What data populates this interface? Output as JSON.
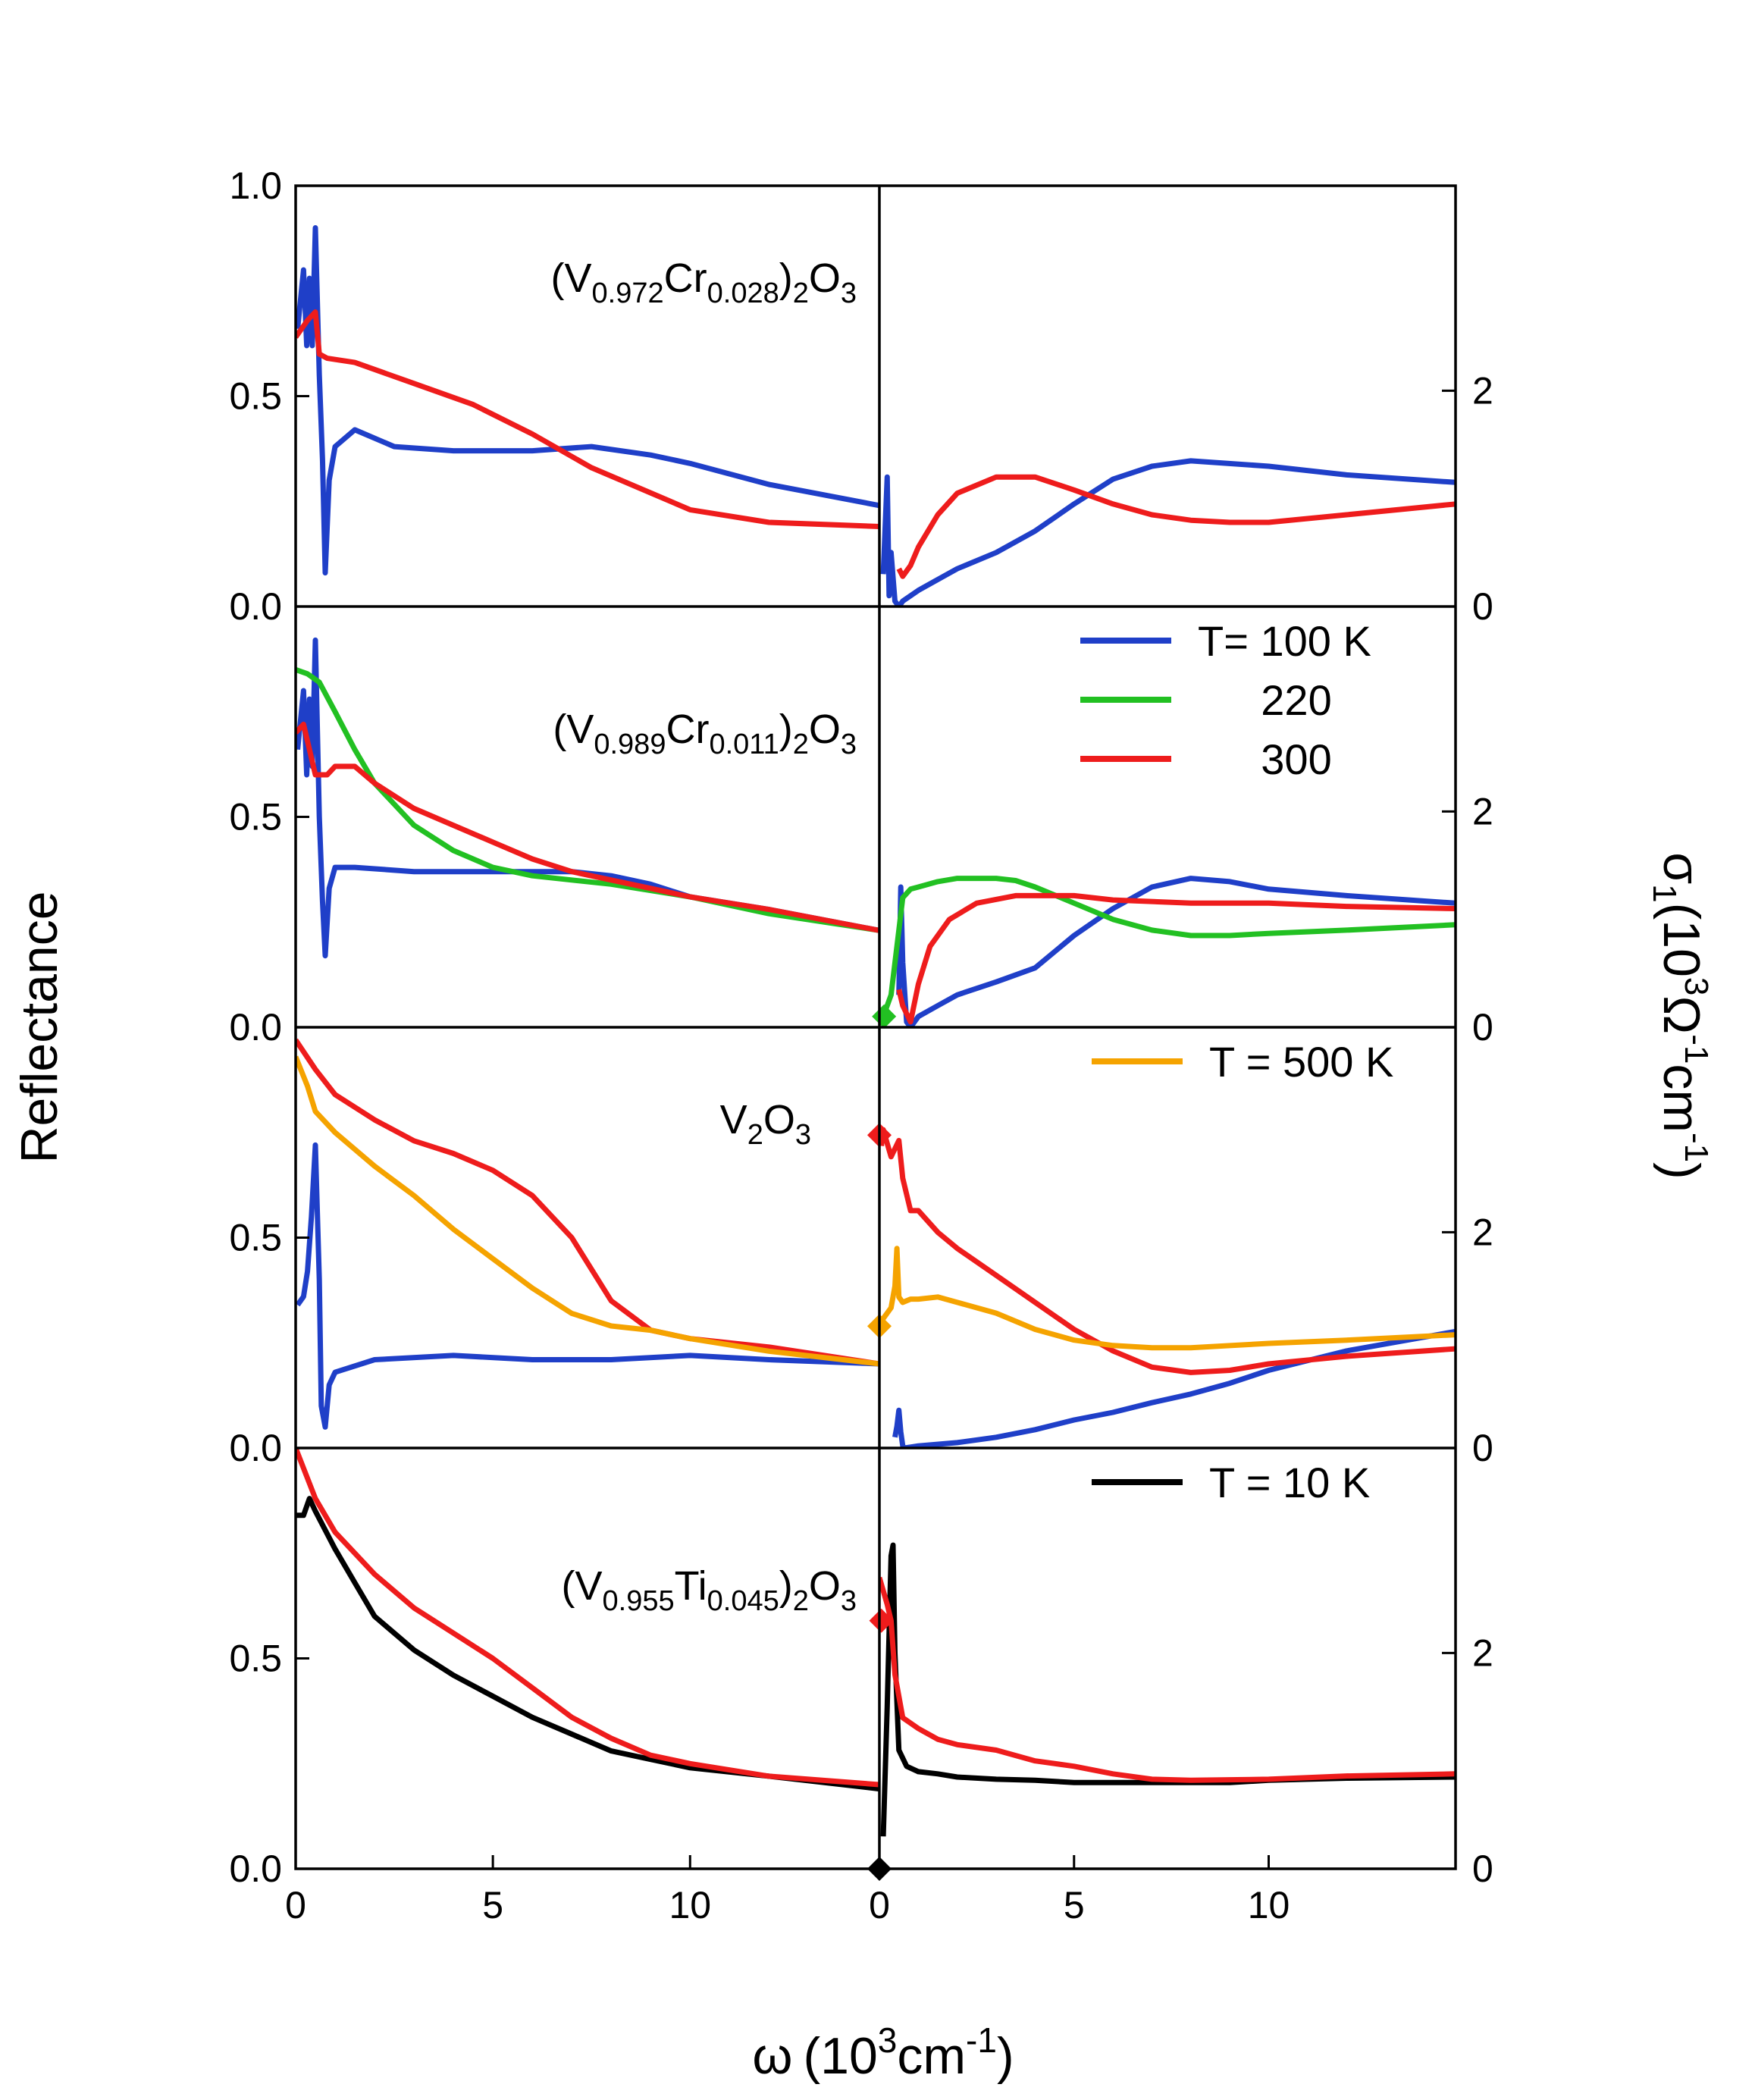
{
  "chart_data": {
    "type": "line",
    "title": "",
    "shared_xlabel": {
      "symbol": "ω",
      "prefix": "(10",
      "sup": "3",
      "mid": "cm",
      "sup2": "-1",
      "suffix": ")"
    },
    "left_ylabel": "Reflectance",
    "right_ylabel": {
      "symbol": "σ",
      "sub": "1",
      "open": "(10",
      "sup": "3",
      "omega": "Ω",
      "sup2": "-1",
      "cm": "cm",
      "sup3": "-1",
      "close": ")"
    },
    "x_ticks": [
      "0",
      "5",
      "10"
    ],
    "x_ticks_values": [
      0,
      5,
      10
    ],
    "xlim": [
      0,
      14.8
    ],
    "reflectance_ylim": [
      0,
      1.0
    ],
    "reflectance_ticks": [
      "0.0",
      "0.5",
      "1.0"
    ],
    "reflectance_ticks_values": [
      0,
      0.5,
      1.0
    ],
    "conductivity_ylim": [
      0,
      3.9
    ],
    "conductivity_ticks": [
      "0",
      "2"
    ],
    "conductivity_ticks_values": [
      0,
      2
    ],
    "colors": {
      "T100": "#1f3fc8",
      "T220": "#22c022",
      "T300": "#ee1c1c",
      "T500": "#f5a300",
      "T10": "#000000"
    },
    "panels": [
      {
        "sample": {
          "pre": "(V",
          "sub1": "0.972",
          "mid": "Cr",
          "sub2": "0.028",
          "post": ")",
          "sub3": "2",
          "end": "O",
          "sub4": "3"
        },
        "legend": [],
        "reflectance": [
          {
            "name": "100 K",
            "color": "#1f3fc8",
            "x": [
              0.05,
              0.2,
              0.28,
              0.35,
              0.42,
              0.5,
              0.6,
              0.68,
              0.75,
              0.85,
              1.0,
              1.5,
              2.5,
              4,
              6,
              7.5,
              9,
              10,
              12,
              14.8
            ],
            "y": [
              0.66,
              0.8,
              0.62,
              0.78,
              0.62,
              0.9,
              0.55,
              0.35,
              0.08,
              0.3,
              0.38,
              0.42,
              0.38,
              0.37,
              0.37,
              0.38,
              0.36,
              0.34,
              0.29,
              0.24
            ]
          },
          {
            "name": "300 K",
            "color": "#ee1c1c",
            "x": [
              0.0,
              0.3,
              0.5,
              0.6,
              0.8,
              1.5,
              3,
              4.5,
              6,
              7.5,
              9,
              10,
              12,
              14.8
            ],
            "y": [
              0.64,
              0.68,
              0.7,
              0.6,
              0.59,
              0.58,
              0.53,
              0.48,
              0.41,
              0.33,
              0.27,
              0.23,
              0.2,
              0.19
            ]
          }
        ],
        "conductivity": [
          {
            "name": "100 K",
            "color": "#1f3fc8",
            "x": [
              0.1,
              0.2,
              0.25,
              0.3,
              0.4,
              0.5,
              0.6,
              1.0,
              1.5,
              2,
              3,
              4,
              5,
              6,
              7,
              8,
              10,
              12,
              14.8
            ],
            "y": [
              0.3,
              1.2,
              0.1,
              0.5,
              0.05,
              0.0,
              0.05,
              0.15,
              0.25,
              0.35,
              0.5,
              0.7,
              0.95,
              1.18,
              1.3,
              1.35,
              1.3,
              1.22,
              1.15
            ]
          },
          {
            "name": "300 K",
            "color": "#ee1c1c",
            "x": [
              0.5,
              0.6,
              0.8,
              1,
              1.5,
              2,
              3,
              4,
              5,
              6,
              7,
              8,
              9,
              10,
              12,
              14.8
            ],
            "y": [
              0.35,
              0.28,
              0.38,
              0.55,
              0.85,
              1.05,
              1.2,
              1.2,
              1.08,
              0.95,
              0.85,
              0.8,
              0.78,
              0.78,
              0.85,
              0.95
            ]
          }
        ]
      },
      {
        "sample": {
          "pre": "(V",
          "sub1": "0.989",
          "mid": "Cr",
          "sub2": "0.011",
          "post": ")",
          "sub3": "2",
          "end": "O",
          "sub4": "3"
        },
        "legend": [
          {
            "label": "T= 100 K",
            "color": "#1f3fc8"
          },
          {
            "label": "220",
            "color": "#22c022"
          },
          {
            "label": "300",
            "color": "#ee1c1c"
          }
        ],
        "reflectance": [
          {
            "name": "100 K",
            "color": "#1f3fc8",
            "x": [
              0.05,
              0.2,
              0.28,
              0.35,
              0.42,
              0.5,
              0.6,
              0.68,
              0.75,
              0.85,
              1.0,
              1.5,
              3,
              5,
              7,
              8,
              9,
              10,
              12,
              14.8
            ],
            "y": [
              0.66,
              0.8,
              0.6,
              0.78,
              0.62,
              0.92,
              0.5,
              0.3,
              0.17,
              0.33,
              0.38,
              0.38,
              0.37,
              0.37,
              0.37,
              0.36,
              0.34,
              0.31,
              0.28,
              0.23
            ]
          },
          {
            "name": "220 K",
            "color": "#22c022",
            "x": [
              0.0,
              0.3,
              0.6,
              1,
              1.5,
              2,
              3,
              4,
              5,
              6,
              7,
              8,
              10,
              12,
              14.8
            ],
            "y": [
              0.85,
              0.84,
              0.82,
              0.75,
              0.66,
              0.58,
              0.48,
              0.42,
              0.38,
              0.36,
              0.35,
              0.34,
              0.31,
              0.27,
              0.23
            ]
          },
          {
            "name": "300 K",
            "color": "#ee1c1c",
            "x": [
              0.0,
              0.2,
              0.5,
              0.8,
              1,
              1.5,
              2,
              3,
              4,
              5,
              6,
              7,
              8,
              9,
              10,
              12,
              14.8
            ],
            "y": [
              0.7,
              0.72,
              0.6,
              0.6,
              0.62,
              0.62,
              0.58,
              0.52,
              0.48,
              0.44,
              0.4,
              0.37,
              0.35,
              0.33,
              0.31,
              0.28,
              0.23
            ]
          }
        ],
        "conductivity": [
          {
            "name": "100 K",
            "color": "#1f3fc8",
            "x": [
              0.5,
              0.55,
              0.6,
              0.7,
              0.8,
              1,
              1.5,
              2,
              3,
              4,
              5,
              6,
              7,
              8,
              9,
              10,
              12,
              14.8
            ],
            "y": [
              0.3,
              1.3,
              0.6,
              0.05,
              0.0,
              0.1,
              0.2,
              0.3,
              0.42,
              0.55,
              0.85,
              1.1,
              1.3,
              1.38,
              1.35,
              1.28,
              1.22,
              1.15
            ]
          },
          {
            "name": "220 K",
            "color": "#22c022",
            "x": [
              0.1,
              0.3,
              0.5,
              0.6,
              0.8,
              1,
              1.5,
              2,
              3,
              3.5,
              4,
              5,
              6,
              7,
              8,
              9,
              10,
              12,
              14.8
            ],
            "y": [
              0.1,
              0.3,
              0.9,
              1.2,
              1.28,
              1.3,
              1.35,
              1.38,
              1.38,
              1.36,
              1.3,
              1.15,
              1.0,
              0.9,
              0.85,
              0.85,
              0.87,
              0.9,
              0.95
            ]
          },
          {
            "name": "300 K",
            "color": "#ee1c1c",
            "x": [
              0.5,
              0.6,
              0.8,
              1,
              1.3,
              1.8,
              2.5,
              3.5,
              5,
              6,
              8,
              10,
              12,
              14.8
            ],
            "y": [
              0.35,
              0.2,
              0.05,
              0.4,
              0.75,
              1.0,
              1.15,
              1.22,
              1.22,
              1.18,
              1.15,
              1.15,
              1.12,
              1.1
            ]
          }
        ],
        "markers": [
          {
            "color": "#22c022",
            "x": 0.12,
            "y": 0.1
          }
        ]
      },
      {
        "sample": {
          "pre": "V",
          "sub1": "2",
          "mid": "O",
          "sub2": "3",
          "post": "",
          "sub3": "",
          "end": "",
          "sub4": ""
        },
        "legend": [
          {
            "label": "T = 500 K",
            "color": "#f5a300"
          }
        ],
        "reflectance": [
          {
            "name": "100 K",
            "color": "#1f3fc8",
            "x": [
              0.05,
              0.2,
              0.3,
              0.4,
              0.5,
              0.6,
              0.65,
              0.75,
              0.85,
              1.0,
              2,
              4,
              6,
              8,
              10,
              12,
              14.8
            ],
            "y": [
              0.34,
              0.36,
              0.42,
              0.55,
              0.72,
              0.4,
              0.1,
              0.05,
              0.15,
              0.18,
              0.21,
              0.22,
              0.21,
              0.21,
              0.22,
              0.21,
              0.2
            ]
          },
          {
            "name": "300 K",
            "color": "#ee1c1c",
            "x": [
              0.0,
              0.5,
              1,
              2,
              3,
              4,
              5,
              6,
              7,
              8,
              9,
              10,
              12,
              14.8
            ],
            "y": [
              0.97,
              0.9,
              0.84,
              0.78,
              0.73,
              0.7,
              0.66,
              0.6,
              0.5,
              0.35,
              0.28,
              0.26,
              0.24,
              0.2
            ]
          },
          {
            "name": "500 K",
            "color": "#f5a300",
            "x": [
              0.0,
              0.3,
              0.5,
              1,
              2,
              3,
              4,
              5,
              6,
              7,
              8,
              9,
              10,
              12,
              14.8
            ],
            "y": [
              0.93,
              0.86,
              0.8,
              0.75,
              0.67,
              0.6,
              0.52,
              0.45,
              0.38,
              0.32,
              0.29,
              0.28,
              0.26,
              0.23,
              0.2
            ]
          }
        ],
        "conductivity": [
          {
            "name": "100 K",
            "color": "#1f3fc8",
            "x": [
              0.4,
              0.45,
              0.5,
              0.55,
              0.6,
              0.65,
              1,
              2,
              3,
              4,
              5,
              6,
              7,
              8,
              9,
              10,
              12,
              14.8
            ],
            "y": [
              0.1,
              0.2,
              0.35,
              0.15,
              0.02,
              0.0,
              0.02,
              0.05,
              0.1,
              0.17,
              0.26,
              0.33,
              0.42,
              0.5,
              0.6,
              0.72,
              0.9,
              1.08
            ]
          },
          {
            "name": "300 K",
            "color": "#ee1c1c",
            "x": [
              0.05,
              0.1,
              0.3,
              0.5,
              0.6,
              0.8,
              1,
              1.5,
              2,
              3,
              4,
              5,
              6,
              7,
              8,
              9,
              10,
              12,
              14.8
            ],
            "y": [
              2.8,
              2.95,
              2.7,
              2.85,
              2.5,
              2.2,
              2.2,
              2.0,
              1.85,
              1.6,
              1.35,
              1.1,
              0.9,
              0.75,
              0.7,
              0.72,
              0.78,
              0.85,
              0.92
            ]
          },
          {
            "name": "500 K",
            "color": "#f5a300",
            "x": [
              0.1,
              0.3,
              0.4,
              0.45,
              0.5,
              0.6,
              0.8,
              1,
              1.5,
              2,
              3,
              4,
              5,
              6,
              7,
              8,
              10,
              12,
              14.8
            ],
            "y": [
              1.2,
              1.3,
              1.5,
              1.85,
              1.4,
              1.35,
              1.38,
              1.38,
              1.4,
              1.35,
              1.25,
              1.1,
              1.0,
              0.95,
              0.93,
              0.93,
              0.97,
              1.0,
              1.05
            ]
          }
        ],
        "markers": [
          {
            "color": "#ee1c1c",
            "x": 0.0,
            "y": 2.9
          },
          {
            "color": "#f5a300",
            "x": 0.0,
            "y": 1.13
          }
        ]
      },
      {
        "sample": {
          "pre": "(V",
          "sub1": "0.955",
          "mid": "Ti",
          "sub2": "0.045",
          "post": ")",
          "sub3": "2",
          "end": "O",
          "sub4": "3"
        },
        "legend": [
          {
            "label": "T = 10 K",
            "color": "#000000"
          }
        ],
        "reflectance": [
          {
            "name": "10 K",
            "color": "#000000",
            "x": [
              0.0,
              0.2,
              0.35,
              0.5,
              1,
              1.5,
              2,
              3,
              4,
              5,
              6,
              7,
              8,
              9,
              10,
              12,
              14.8
            ],
            "y": [
              0.84,
              0.84,
              0.88,
              0.85,
              0.76,
              0.68,
              0.6,
              0.52,
              0.46,
              0.41,
              0.36,
              0.32,
              0.28,
              0.26,
              0.24,
              0.22,
              0.19
            ]
          },
          {
            "name": "300 K",
            "color": "#ee1c1c",
            "x": [
              0.0,
              0.5,
              1,
              2,
              3,
              4,
              5,
              6,
              7,
              8,
              9,
              10,
              12,
              14.8
            ],
            "y": [
              1.0,
              0.88,
              0.8,
              0.7,
              0.62,
              0.56,
              0.5,
              0.43,
              0.36,
              0.31,
              0.27,
              0.25,
              0.22,
              0.2
            ]
          }
        ],
        "conductivity": [
          {
            "name": "10 K",
            "color": "#000000",
            "x": [
              0.1,
              0.2,
              0.3,
              0.35,
              0.4,
              0.5,
              0.7,
              1,
              1.5,
              2,
              3,
              4,
              5,
              7,
              9,
              10,
              12,
              14.8
            ],
            "y": [
              0.3,
              1.5,
              2.9,
              3.0,
              2.0,
              1.1,
              0.95,
              0.9,
              0.88,
              0.85,
              0.83,
              0.82,
              0.8,
              0.8,
              0.8,
              0.82,
              0.84,
              0.85
            ]
          },
          {
            "name": "300 K",
            "color": "#ee1c1c",
            "x": [
              0.0,
              0.2,
              0.3,
              0.4,
              0.6,
              1,
              1.5,
              2,
              3,
              4,
              5,
              6,
              7,
              8,
              10,
              12,
              14.8
            ],
            "y": [
              2.7,
              2.45,
              2.3,
              1.8,
              1.4,
              1.3,
              1.2,
              1.15,
              1.1,
              1.0,
              0.95,
              0.88,
              0.83,
              0.82,
              0.83,
              0.86,
              0.88
            ]
          }
        ],
        "markers": [
          {
            "color": "#ee1c1c",
            "x": 0.05,
            "y": 2.3
          },
          {
            "color": "#000000",
            "x": 0.0,
            "y": 0.0
          }
        ]
      }
    ]
  }
}
